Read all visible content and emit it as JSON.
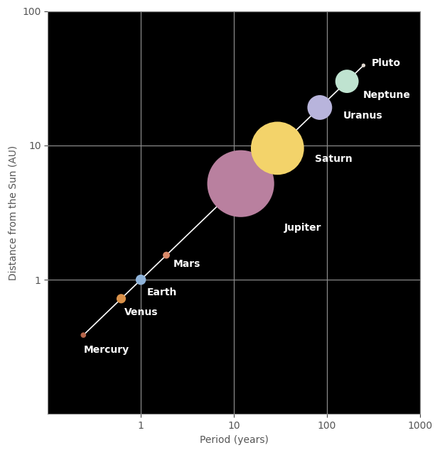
{
  "chart_data": {
    "type": "line",
    "marker": "circle",
    "log": true,
    "grid": true,
    "x_label": "Period (years)",
    "y_label": "Distance from the Sun (AU)",
    "labels": [
      "Mercury",
      "Venus",
      "Earth",
      "Mars",
      "Jupiter",
      "Saturn",
      "Uranus",
      "Neptune",
      "Pluto"
    ],
    "x": [
      0.241,
      0.615,
      1.0,
      1.881,
      11.86,
      29.46,
      84.0,
      164.8,
      248.0
    ],
    "values": [
      0.387,
      0.723,
      1.0,
      1.524,
      5.2,
      9.54,
      19.19,
      30.06,
      39.5
    ],
    "colors": [
      "#b5654a",
      "#d9914a",
      "#8fb3d9",
      "#d98a6a",
      "#b9809f",
      "#f3d36a",
      "#b8b4dc",
      "#bfe3d0",
      "#e0d8d0"
    ],
    "color": "#ffffff",
    "xlim": [
      0.1,
      1000
    ],
    "xticks": [
      1,
      10,
      100,
      1000
    ],
    "ylim": [
      0.1,
      100
    ],
    "yticks": [
      1,
      10,
      100
    ]
  }
}
